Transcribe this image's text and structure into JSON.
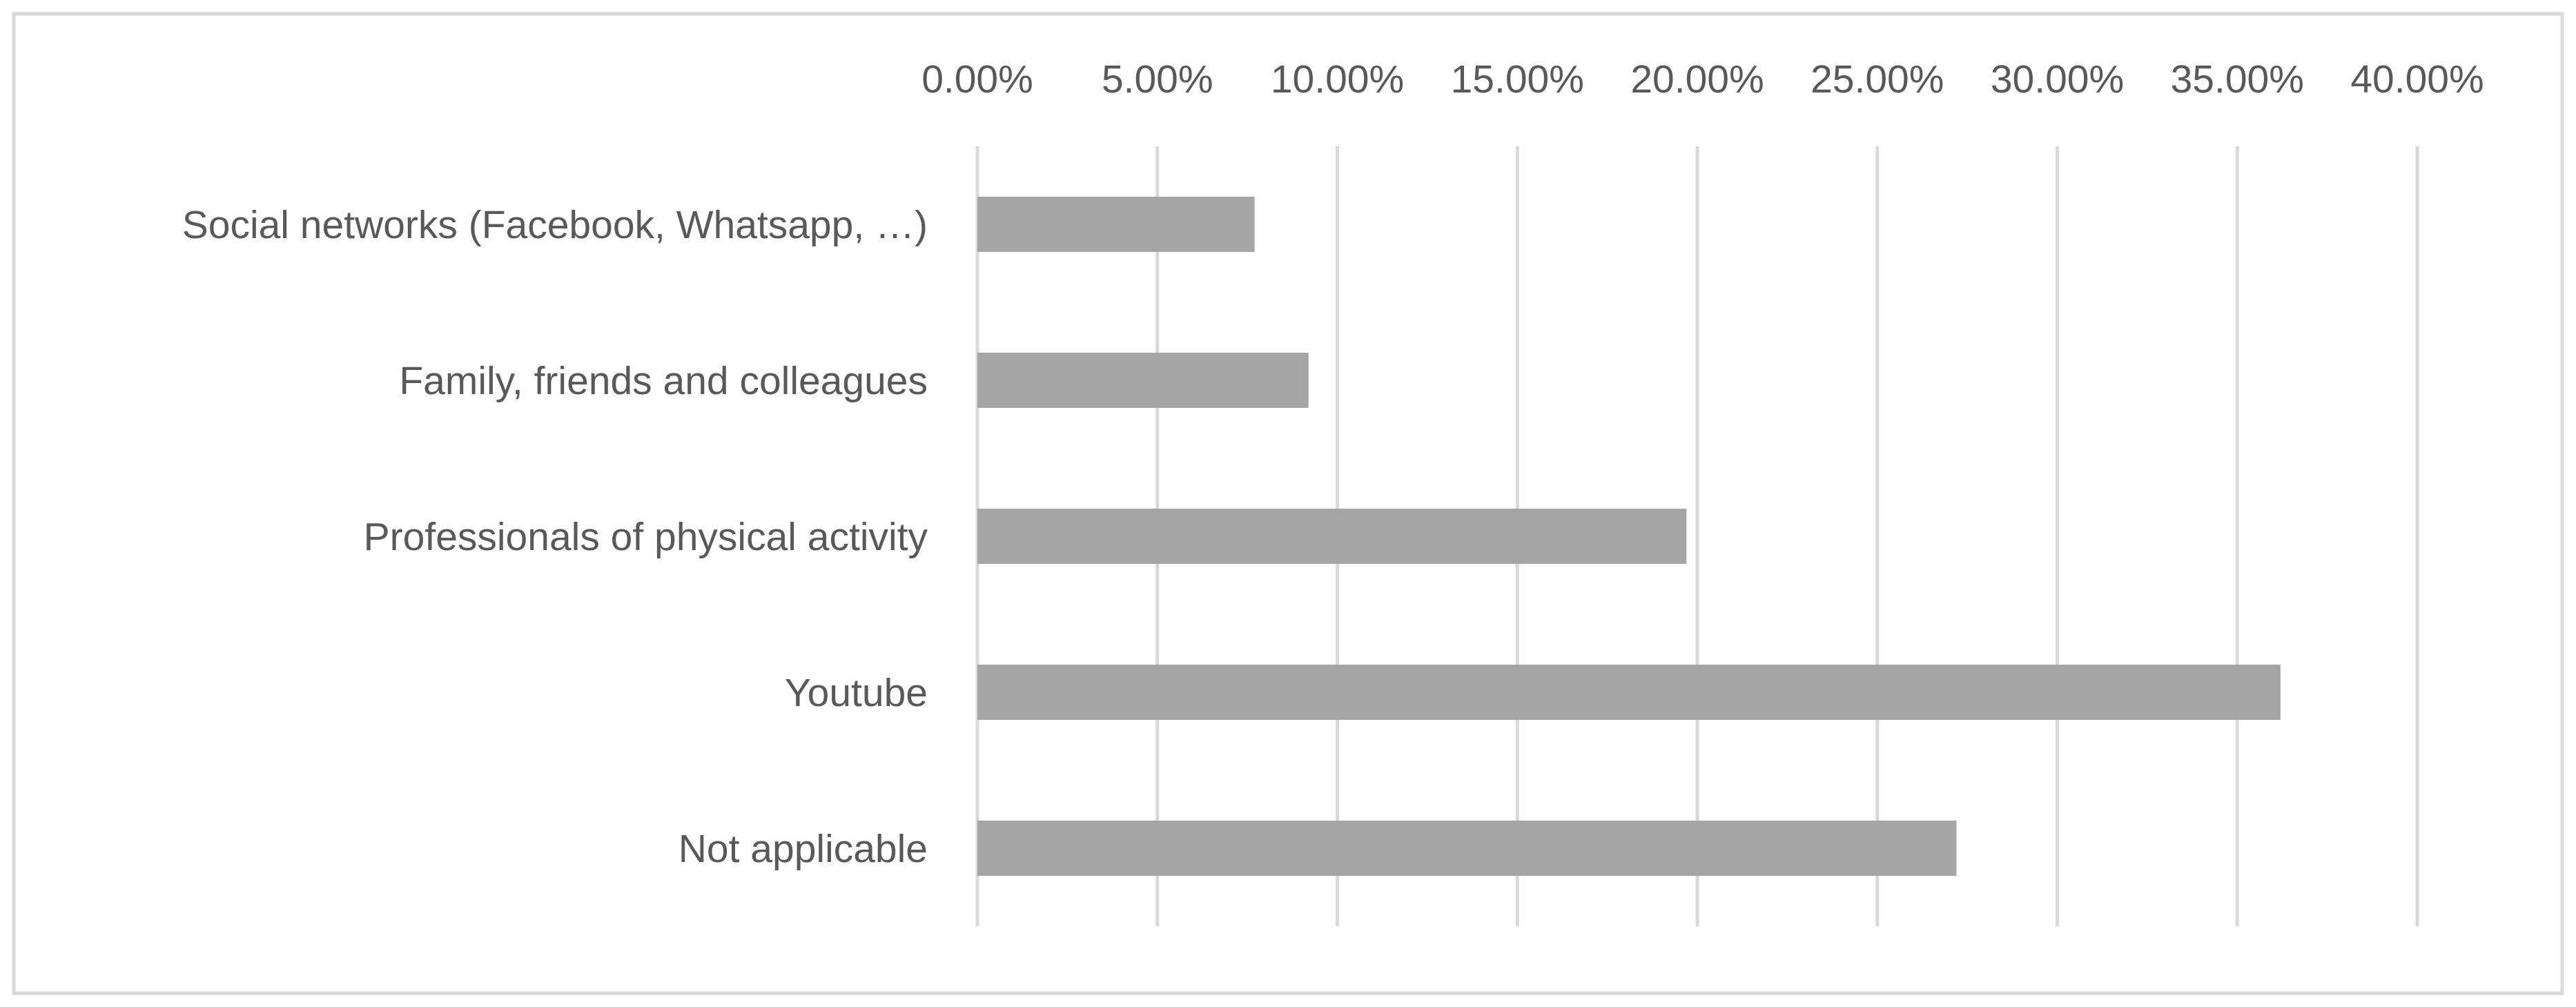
{
  "chart_data": {
    "type": "bar",
    "orientation": "horizontal",
    "categories": [
      "Social networks (Facebook, Whatsapp, …)",
      "Family, friends and colleagues",
      "Professionals of physical activity",
      "Youtube",
      "Not applicable"
    ],
    "values": [
      7.7,
      9.2,
      19.7,
      36.2,
      27.2
    ],
    "value_unit": "%",
    "xlim": [
      0,
      40
    ],
    "x_ticks": [
      "0.00%",
      "5.00%",
      "10.00%",
      "15.00%",
      "20.00%",
      "25.00%",
      "30.00%",
      "35.00%",
      "40.00%"
    ],
    "x_tick_values": [
      0,
      5,
      10,
      15,
      20,
      25,
      30,
      35,
      40
    ],
    "x_axis_position": "top",
    "grid": true,
    "legend": "none",
    "bar_color": "#a5a5a5",
    "grid_color": "#d9d9d9",
    "text_color": "#595959",
    "border_color": "#d9d9d9"
  }
}
